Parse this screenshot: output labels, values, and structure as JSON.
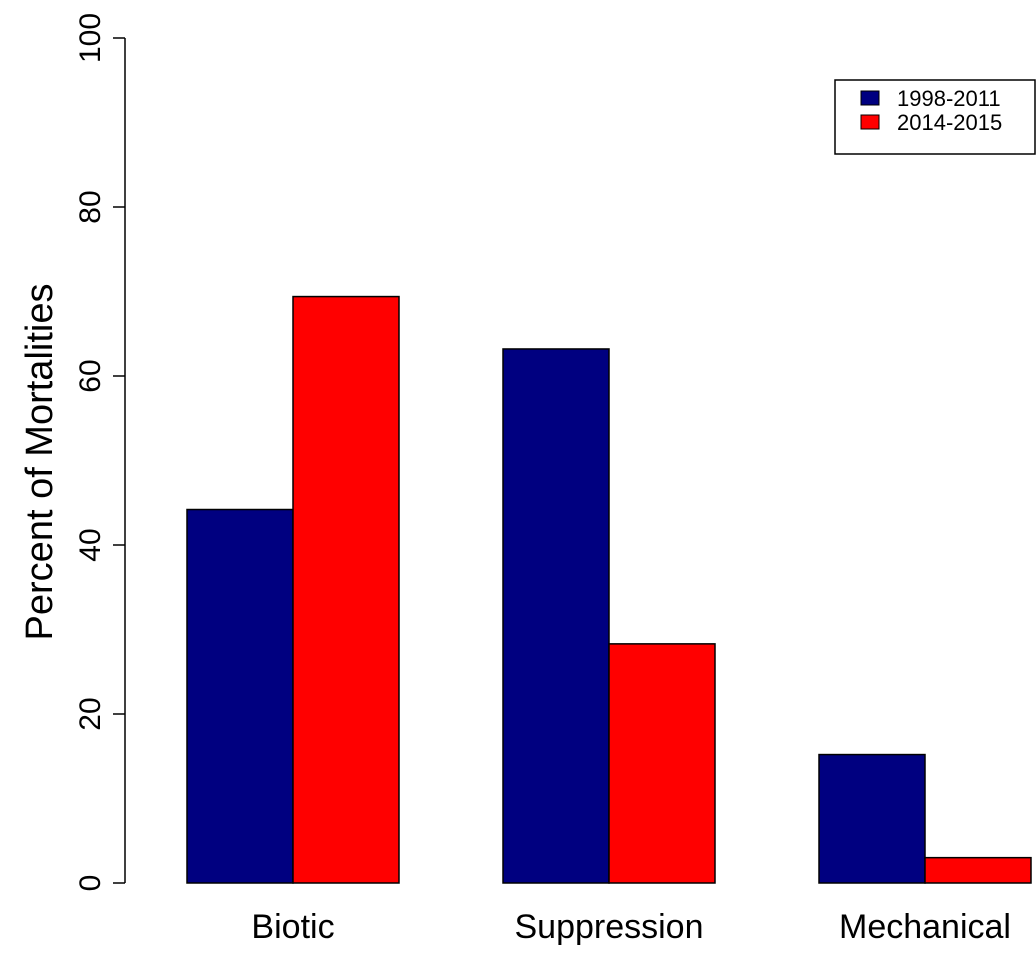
{
  "chart_data": {
    "type": "bar",
    "categories": [
      "Biotic",
      "Suppression",
      "Mechanical"
    ],
    "series": [
      {
        "name": "1998-2011",
        "color": "#000080",
        "values": [
          44.2,
          63.2,
          15.2
        ]
      },
      {
        "name": "2014-2015",
        "color": "#ff0000",
        "values": [
          69.4,
          28.3,
          3.0
        ]
      }
    ],
    "title": "",
    "xlabel": "",
    "ylabel": "Percent of Mortalities",
    "ylim": [
      0,
      100
    ],
    "yticks": [
      0,
      20,
      40,
      60,
      80,
      100
    ],
    "ytick_labels": [
      "0",
      "20",
      "40",
      "60",
      "80",
      "100"
    ],
    "grid": false,
    "legend_position": "top-right"
  }
}
